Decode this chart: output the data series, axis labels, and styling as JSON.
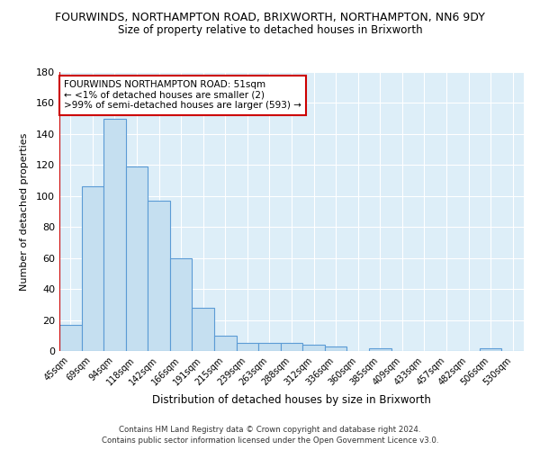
{
  "title1": "FOURWINDS, NORTHAMPTON ROAD, BRIXWORTH, NORTHAMPTON, NN6 9DY",
  "title2": "Size of property relative to detached houses in Brixworth",
  "xlabel": "Distribution of detached houses by size in Brixworth",
  "ylabel": "Number of detached properties",
  "categories": [
    "45sqm",
    "69sqm",
    "94sqm",
    "118sqm",
    "142sqm",
    "166sqm",
    "191sqm",
    "215sqm",
    "239sqm",
    "263sqm",
    "288sqm",
    "312sqm",
    "336sqm",
    "360sqm",
    "385sqm",
    "409sqm",
    "433sqm",
    "457sqm",
    "482sqm",
    "506sqm",
    "530sqm"
  ],
  "values": [
    17,
    106,
    150,
    119,
    97,
    60,
    28,
    10,
    5,
    5,
    5,
    4,
    3,
    0,
    2,
    0,
    0,
    0,
    0,
    2,
    0
  ],
  "bar_color": "#c5dff0",
  "bar_edge_color": "#5b9bd5",
  "background_color": "#ddeef8",
  "grid_color": "#ffffff",
  "marker_color": "#cc0000",
  "ylim": [
    0,
    180
  ],
  "yticks": [
    0,
    20,
    40,
    60,
    80,
    100,
    120,
    140,
    160,
    180
  ],
  "annotation_line1": "FOURWINDS NORTHAMPTON ROAD: 51sqm",
  "annotation_line2": "← <1% of detached houses are smaller (2)",
  "annotation_line3": ">99% of semi-detached houses are larger (593) →",
  "footer1": "Contains HM Land Registry data © Crown copyright and database right 2024.",
  "footer2": "Contains public sector information licensed under the Open Government Licence v3.0."
}
